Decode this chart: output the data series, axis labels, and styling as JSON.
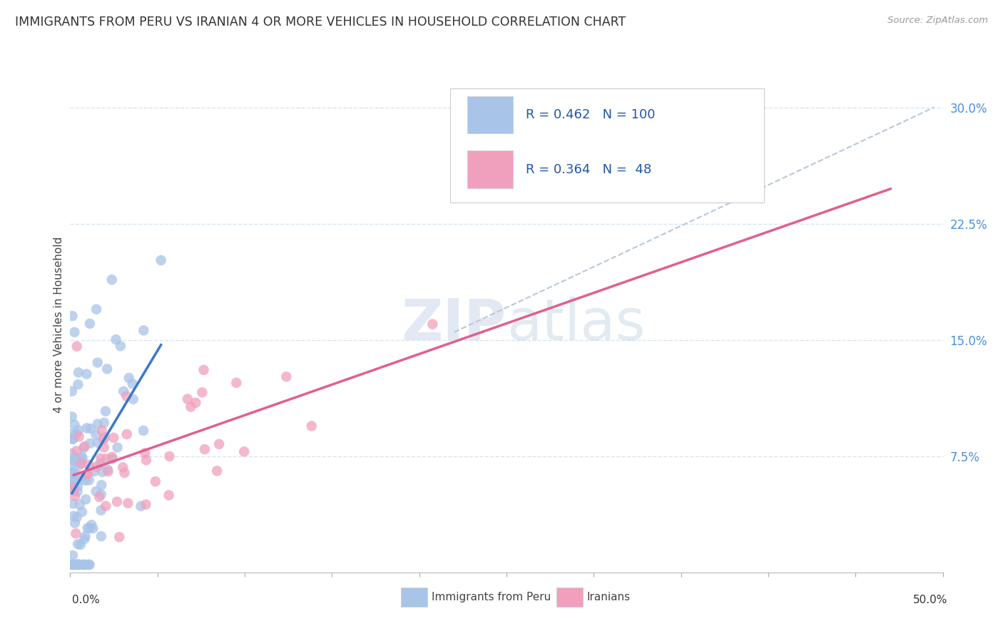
{
  "title": "IMMIGRANTS FROM PERU VS IRANIAN 4 OR MORE VEHICLES IN HOUSEHOLD CORRELATION CHART",
  "source": "Source: ZipAtlas.com",
  "ylabel": "4 or more Vehicles in Household",
  "legend_blue_label": "Immigrants from Peru",
  "legend_pink_label": "Iranians",
  "R_blue": 0.462,
  "N_blue": 100,
  "R_pink": 0.364,
  "N_pink": 48,
  "blue_color": "#a8c4e8",
  "pink_color": "#f0a0bc",
  "blue_line_color": "#3a78c9",
  "pink_line_color": "#e06090",
  "grid_color": "#d8e4f0",
  "background_color": "#ffffff",
  "xlim": [
    0.0,
    0.5
  ],
  "ylim": [
    0.0,
    0.32
  ],
  "ytick_vals": [
    0.075,
    0.15,
    0.225,
    0.3
  ],
  "ytick_labels": [
    "7.5%",
    "15.0%",
    "22.5%",
    "30.0%"
  ]
}
